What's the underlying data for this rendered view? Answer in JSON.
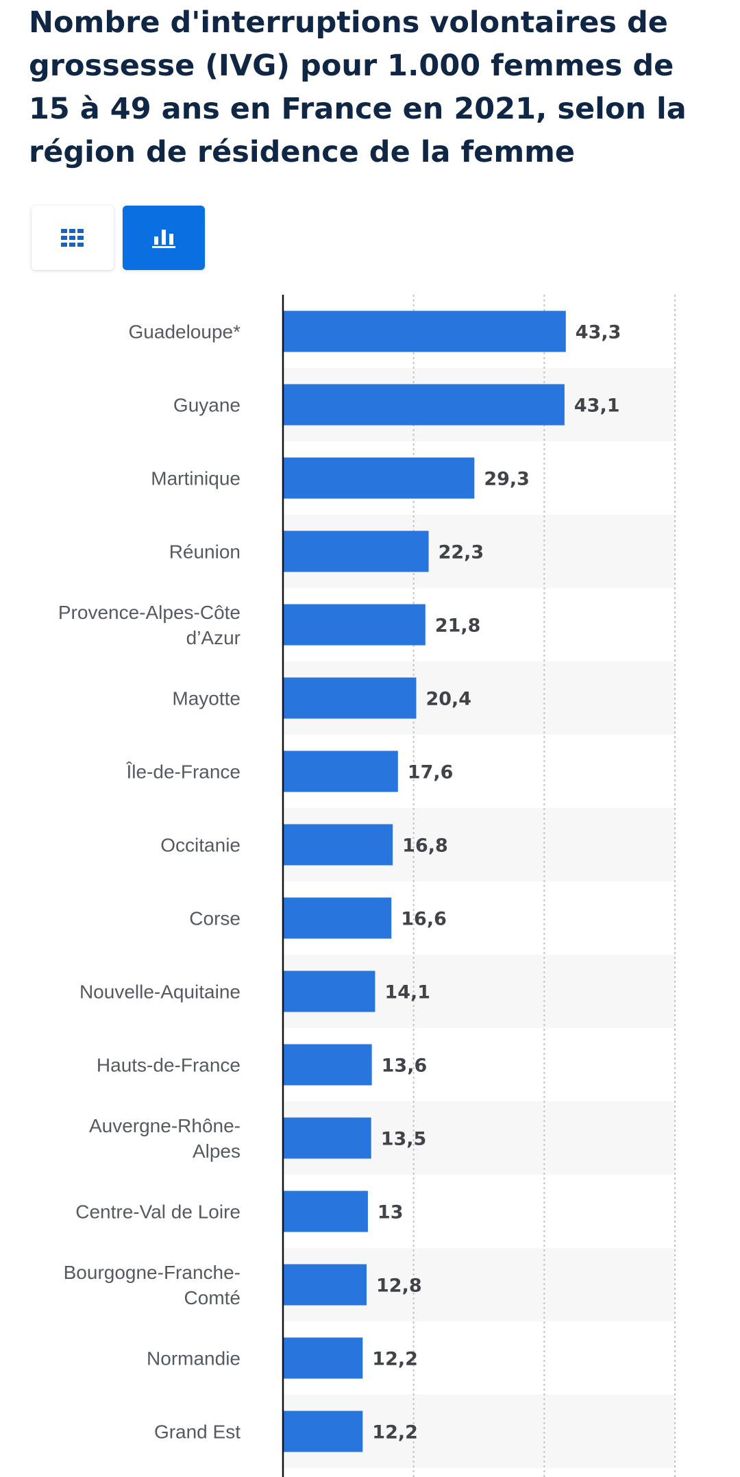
{
  "chart_data": {
    "type": "bar",
    "orientation": "horizontal",
    "title": "Nombre d'interruptions volontaires de grossesse (IVG) pour 1.000 femmes de 15 à 49 ans en France en 2021, selon la région de résidence de la femme",
    "categories": [
      "Guadeloupe*",
      "Guyane",
      "Martinique",
      "Réunion",
      "Provence-Alpes-Côte d’Azur",
      "Mayotte",
      "Île-de-France",
      "Occitanie",
      "Corse",
      "Nouvelle-Aquitaine",
      "Hauts-de-France",
      "Auvergne-Rhône-Alpes",
      "Centre-Val de Loire",
      "Bourgogne-Franche-Comté",
      "Normandie",
      "Grand Est"
    ],
    "category_lines": [
      [
        "Guadeloupe*"
      ],
      [
        "Guyane"
      ],
      [
        "Martinique"
      ],
      [
        "Réunion"
      ],
      [
        "Provence-Alpes-Côte",
        "d’Azur"
      ],
      [
        "Mayotte"
      ],
      [
        "Île-de-France"
      ],
      [
        "Occitanie"
      ],
      [
        "Corse"
      ],
      [
        "Nouvelle-Aquitaine"
      ],
      [
        "Hauts-de-France"
      ],
      [
        "Auvergne-Rhône-",
        "Alpes"
      ],
      [
        "Centre-Val de Loire"
      ],
      [
        "Bourgogne-Franche-",
        "Comté"
      ],
      [
        "Normandie"
      ],
      [
        "Grand Est"
      ]
    ],
    "values": [
      43.3,
      43.1,
      29.3,
      22.3,
      21.8,
      20.4,
      17.6,
      16.8,
      16.6,
      14.1,
      13.6,
      13.5,
      13,
      12.8,
      12.2,
      12.2
    ],
    "value_labels": [
      "43,3",
      "43,1",
      "29,3",
      "22,3",
      "21,8",
      "20,4",
      "17,6",
      "16,8",
      "16,6",
      "14,1",
      "13,6",
      "13,5",
      "13",
      "12,8",
      "12,2",
      "12,2"
    ],
    "xlim": [
      0,
      60
    ],
    "gridlines_at": [
      20,
      40,
      60
    ],
    "grid": true,
    "xlabel": "",
    "ylabel": "",
    "bar_color": "#2876dd",
    "alt_row_color": "#f7f7f7"
  },
  "view_toggle": {
    "table_icon": "table-grid-icon",
    "chart_icon": "bar-chart-icon",
    "active": "chart",
    "active_color": "#0a6fe0",
    "table_icon_color": "#1565c0"
  }
}
